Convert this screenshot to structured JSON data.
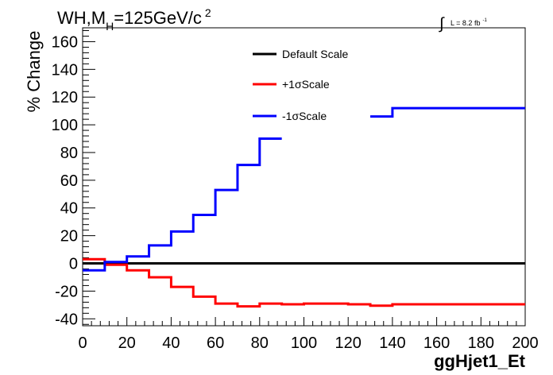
{
  "chart_data": {
    "type": "line",
    "step": true,
    "title": {
      "main": "WH,M",
      "sub": "H",
      "rest": "=125GeV/c",
      "sup": "2"
    },
    "lumi": {
      "integral_symbol": "∫",
      "text": "L = 8.2 fb",
      "sup": "-1"
    },
    "xlabel": "ggHjet1_Et",
    "ylabel": "% Change",
    "xlim": [
      0,
      200
    ],
    "ylim": [
      -45,
      170
    ],
    "x_ticks": [
      0,
      20,
      40,
      60,
      80,
      100,
      120,
      140,
      160,
      180,
      200
    ],
    "y_ticks": [
      -40,
      -20,
      0,
      20,
      40,
      60,
      80,
      100,
      120,
      140,
      160
    ],
    "bin_edges": [
      0,
      10,
      20,
      30,
      40,
      50,
      60,
      70,
      80,
      90,
      100,
      110,
      120,
      130,
      140,
      150,
      160,
      170,
      180,
      190,
      200
    ],
    "legend_position": "top-center",
    "series": [
      {
        "name": "Default Scale",
        "color": "#000000",
        "values": [
          0,
          0,
          0,
          0,
          0,
          0,
          0,
          0,
          0,
          0,
          0,
          0,
          0,
          0,
          0,
          0,
          0,
          0,
          0,
          0
        ]
      },
      {
        "name": "+1σScale",
        "color": "#ff0000",
        "values": [
          3,
          -1,
          -5,
          -10,
          -17,
          -24,
          -29,
          -31,
          -29,
          -29.5,
          -29,
          -29,
          -29.5,
          -30.5,
          -29.5,
          -29.5,
          -29.5,
          -29.5,
          -29.5,
          -29.5
        ]
      },
      {
        "name": "-1σScale",
        "color": "#0000ff",
        "values": [
          -5,
          1,
          5,
          13,
          23,
          35,
          53,
          71,
          90,
          null,
          null,
          null,
          null,
          106,
          112,
          112,
          112,
          112,
          112,
          112
        ]
      }
    ]
  }
}
